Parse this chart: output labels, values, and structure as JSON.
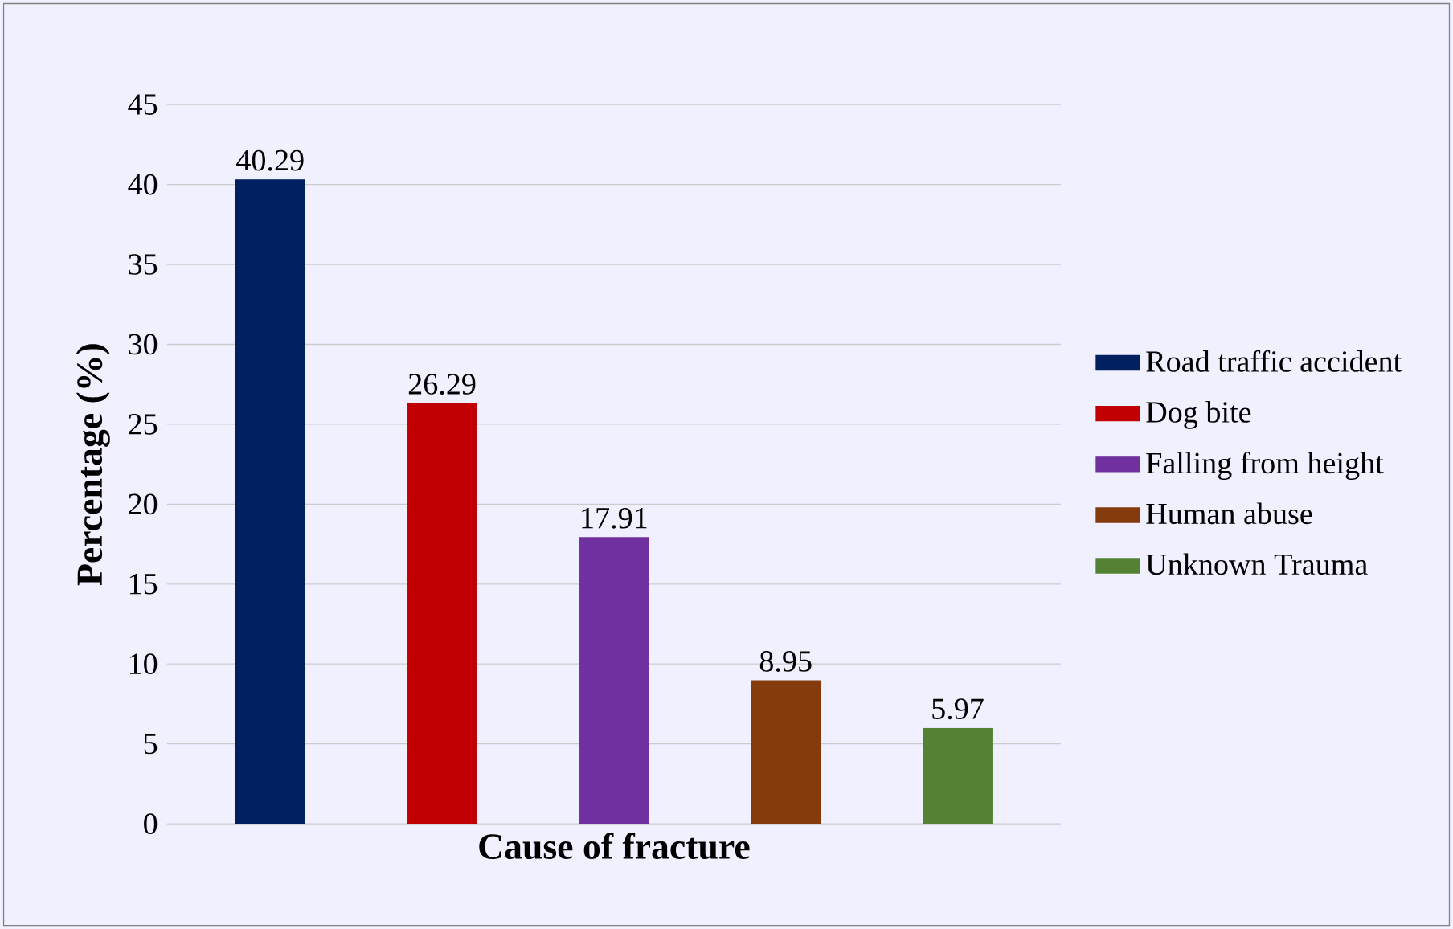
{
  "chart_data": {
    "type": "bar",
    "xlabel": "Cause of fracture",
    "ylabel": "Percentage (%)",
    "categories": [
      null,
      null,
      null,
      null,
      null
    ],
    "series": [
      {
        "name": "Road traffic accident",
        "color": "#002060",
        "values": [
          40.29,
          null,
          null,
          null,
          null
        ]
      },
      {
        "name": "Dog bite",
        "color": "#c00000",
        "values": [
          null,
          26.29,
          null,
          null,
          null
        ]
      },
      {
        "name": "Falling from height",
        "color": "#7030a0",
        "values": [
          null,
          null,
          17.91,
          null,
          null
        ]
      },
      {
        "name": "Human abuse",
        "color": "#843c0c",
        "values": [
          null,
          null,
          null,
          8.95,
          null
        ]
      },
      {
        "name": "Unknown Trauma",
        "color": "#548235",
        "values": [
          null,
          null,
          null,
          null,
          5.97
        ]
      }
    ],
    "ylim": [
      0,
      45
    ],
    "yticks": [
      0,
      5,
      10,
      15,
      20,
      25,
      30,
      35,
      40,
      45
    ],
    "grid": "y",
    "legend": "right",
    "data_labels": true
  }
}
